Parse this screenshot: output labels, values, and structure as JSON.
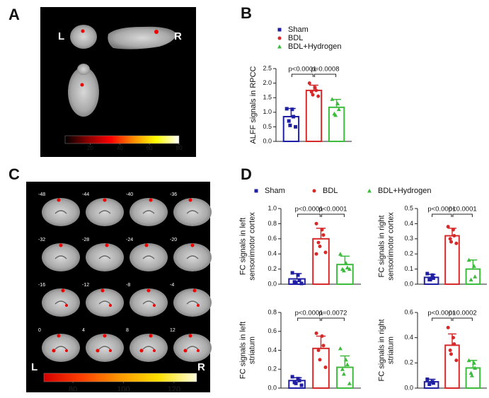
{
  "panel_labels": [
    "A",
    "B",
    "C",
    "D"
  ],
  "images": [
    {
      "left": "L",
      "right": "R"
    },
    {
      "left": "L",
      "right": "R",
      "slices": [
        -48,
        -44,
        -40,
        -36,
        -32,
        -28,
        -24,
        -20,
        -16,
        -12,
        -8,
        -4,
        0,
        4,
        8,
        12
      ]
    }
  ],
  "chart_data": [
    {
      "type": "colorbar",
      "colors": [
        "#000000",
        "#8b0000",
        "#ff0000",
        "#ff8c00",
        "#ffff00",
        "#ffffff"
      ],
      "xlim": [
        3,
        80
      ],
      "xticks": [
        20,
        40,
        60,
        80
      ]
    },
    {
      "type": "bar",
      "legend": true,
      "ylabel": [
        "ALFF signals in RPCC"
      ],
      "categories": [
        "Sham",
        "BDL",
        "BDL+Hydrogen"
      ],
      "colors": [
        "#1f1fa3",
        "#d62a2a",
        "#3dbb3d"
      ],
      "markers": [
        "square",
        "circle",
        "triangle"
      ],
      "values": [
        0.85,
        1.75,
        1.17
      ],
      "errors": [
        0.28,
        0.18,
        0.27
      ],
      "points": [
        [
          1.12,
          1.1,
          0.85,
          0.7,
          0.55,
          0.5
        ],
        [
          2.0,
          1.85,
          1.75,
          1.7,
          1.6,
          1.55
        ],
        [
          1.45,
          1.3,
          1.1,
          0.95,
          0.9
        ]
      ],
      "annotations": [
        "p<0.0001",
        "p=0.0008"
      ],
      "ylim": [
        0,
        2.5
      ],
      "yticks": [
        {
          "value": 0,
          "label": "0.0"
        },
        0.5,
        {
          "value": 1,
          "label": "1.0"
        },
        1.5,
        {
          "value": 2,
          "label": "2.0"
        },
        2.5
      ]
    },
    {
      "type": "colorbar",
      "colors": [
        "#d40000",
        "#ff4000",
        "#ff9900",
        "#ffe000",
        "#ffffe0"
      ],
      "xlim": [
        68.5,
        129
      ],
      "xticks": [
        80,
        100,
        120
      ]
    },
    {
      "type": "bar",
      "legend": true,
      "ylabel": [
        "FC signals in left",
        "sensorimotor cortex"
      ],
      "categories": [
        "Sham",
        "BDL",
        "BDL+Hydrogen"
      ],
      "colors": [
        "#1f1fa3",
        "#d62a2a",
        "#3dbb3d"
      ],
      "markers": [
        "square",
        "circle",
        "triangle"
      ],
      "values": [
        0.07,
        0.6,
        0.26
      ],
      "errors": [
        0.07,
        0.14,
        0.11
      ],
      "points": [
        [
          0.15,
          0.12,
          0.05,
          0.03,
          0.02,
          0.01
        ],
        [
          0.8,
          0.72,
          0.65,
          0.55,
          0.5,
          0.42,
          0.4
        ],
        [
          0.4,
          0.28,
          0.22,
          0.2,
          0.18,
          0.2
        ]
      ],
      "annotations": [
        "p<0.0001",
        "p<0.0001"
      ],
      "ylim": [
        0,
        1
      ],
      "yticks": [
        {
          "value": 0,
          "label": "0.0"
        },
        0.2,
        0.4,
        0.6,
        0.8,
        {
          "value": 1,
          "label": "1.0"
        }
      ]
    },
    {
      "type": "bar",
      "ylabel": [
        "FC signals in right",
        "sensorimotor cortex"
      ],
      "categories": [
        "Sham",
        "BDL",
        "BDL+Hydrogen"
      ],
      "colors": [
        "#1f1fa3",
        "#d62a2a",
        "#3dbb3d"
      ],
      "markers": [
        "square",
        "circle",
        "triangle"
      ],
      "values": [
        0.045,
        0.32,
        0.1
      ],
      "errors": [
        0.02,
        0.05,
        0.06
      ],
      "points": [
        [
          0.07,
          0.06,
          0.04,
          0.03,
          0.03
        ],
        [
          0.38,
          0.36,
          0.32,
          0.3,
          0.28,
          0.27
        ],
        [
          0.16,
          0.12,
          0.05,
          0.03
        ]
      ],
      "annotations": [
        "p<0.0001",
        "p<0.0001"
      ],
      "ylim": [
        0,
        0.5
      ],
      "yticks": [
        {
          "value": 0,
          "label": "0.0"
        },
        0.1,
        0.2,
        0.3,
        0.4,
        0.5
      ]
    },
    {
      "type": "bar",
      "ylabel": [
        "FC signals in left",
        "striatum"
      ],
      "categories": [
        "Sham",
        "BDL",
        "BDL+Hydrogen"
      ],
      "colors": [
        "#1f1fa3",
        "#d62a2a",
        "#3dbb3d"
      ],
      "markers": [
        "square",
        "circle",
        "triangle"
      ],
      "values": [
        0.08,
        0.42,
        0.22
      ],
      "errors": [
        0.03,
        0.13,
        0.12
      ],
      "points": [
        [
          0.12,
          0.1,
          0.08,
          0.06,
          0.05,
          0.03
        ],
        [
          0.58,
          0.55,
          0.45,
          0.4,
          0.3,
          0.22
        ],
        [
          0.42,
          0.3,
          0.25,
          0.2,
          0.15,
          0.05
        ]
      ],
      "annotations": [
        "p<0.0001",
        "p=0.0072"
      ],
      "ylim": [
        0,
        0.8
      ],
      "yticks": [
        {
          "value": 0,
          "label": "0.0"
        },
        0.2,
        0.4,
        0.6,
        0.8
      ]
    },
    {
      "type": "bar",
      "ylabel": [
        "FC signals in right",
        "striatum"
      ],
      "categories": [
        "Sham",
        "BDL",
        "BDL+Hydrogen"
      ],
      "colors": [
        "#1f1fa3",
        "#d62a2a",
        "#3dbb3d"
      ],
      "markers": [
        "square",
        "circle",
        "triangle"
      ],
      "values": [
        0.05,
        0.34,
        0.16
      ],
      "errors": [
        0.02,
        0.09,
        0.06
      ],
      "points": [
        [
          0.07,
          0.05,
          0.04,
          0.03
        ],
        [
          0.48,
          0.4,
          0.35,
          0.3,
          0.27,
          0.22
        ],
        [
          0.22,
          0.2,
          0.16,
          0.12,
          0.1
        ]
      ],
      "annotations": [
        "p<0.0001",
        "p=0.0002"
      ],
      "ylim": [
        0,
        0.6
      ],
      "yticks": [
        {
          "value": 0,
          "label": "0.0"
        },
        0.2,
        0.4,
        0.6
      ]
    }
  ]
}
